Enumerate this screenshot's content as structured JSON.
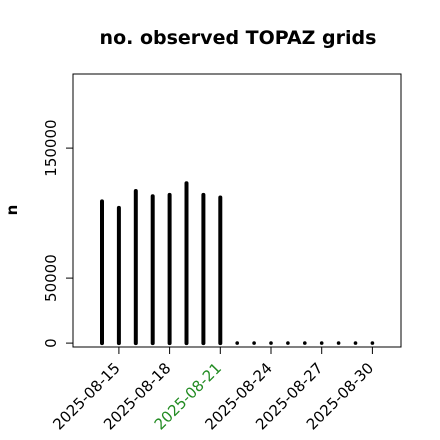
{
  "chart_data": {
    "type": "bar",
    "title": "no. observed TOPAZ grids",
    "ylabel": "n",
    "xlabel": "",
    "y_ticks": [
      0,
      50000,
      150000
    ],
    "y_tick_labels": [
      "0",
      "50000",
      "150000"
    ],
    "ylim": [
      -3000,
      207000
    ],
    "x_tick_labels": [
      "2025-08-15",
      "2025-08-18",
      "2025-08-21",
      "2025-08-24",
      "2025-08-27",
      "2025-08-30"
    ],
    "x_tick_colors": [
      "#000000",
      "#000000",
      "#228B22",
      "#000000",
      "#000000",
      "#000000"
    ],
    "x": [
      "2025-08-14",
      "2025-08-15",
      "2025-08-16",
      "2025-08-17",
      "2025-08-18",
      "2025-08-19",
      "2025-08-20",
      "2025-08-21",
      "2025-08-22",
      "2025-08-23",
      "2025-08-24",
      "2025-08-25",
      "2025-08-26",
      "2025-08-27",
      "2025-08-28",
      "2025-08-29",
      "2025-08-30"
    ],
    "values": [
      109000,
      104000,
      117000,
      113000,
      114000,
      123000,
      114000,
      112000,
      0,
      0,
      0,
      0,
      0,
      0,
      0,
      0,
      0
    ],
    "grid": false,
    "bar_color": "#000000"
  }
}
